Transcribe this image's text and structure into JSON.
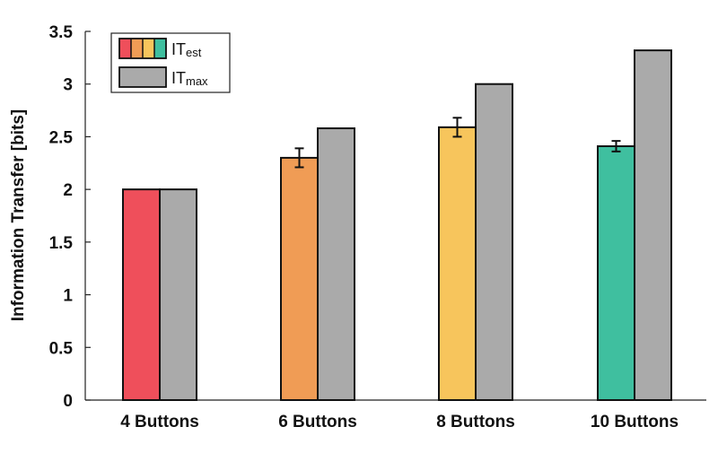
{
  "chart_data": {
    "type": "bar",
    "title": "",
    "xlabel": "",
    "ylabel": "Information Transfer [bits]",
    "ylim": [
      0,
      3.5
    ],
    "yticks": [
      "0",
      "0.5",
      "1",
      "1.5",
      "2",
      "2.5",
      "3",
      "3.5"
    ],
    "grid": false,
    "legend_position": "top-left",
    "categories": [
      "4 Buttons",
      "6 Buttons",
      "8 Buttons",
      "10 Buttons"
    ],
    "series": [
      {
        "name": "ITest",
        "legend_main": "IT",
        "legend_sub": "est",
        "values": [
          2.0,
          2.3,
          2.59,
          2.41
        ],
        "errors": [
          0.0,
          0.09,
          0.09,
          0.05
        ],
        "colors": [
          "#ef4f5b",
          "#f09c55",
          "#f7c55c",
          "#3fbf9f"
        ]
      },
      {
        "name": "ITmax",
        "legend_main": "IT",
        "legend_sub": "max",
        "values": [
          2.0,
          2.58,
          3.0,
          3.32
        ],
        "colors": [
          "#aaaaaa",
          "#aaaaaa",
          "#aaaaaa",
          "#aaaaaa"
        ]
      }
    ]
  }
}
